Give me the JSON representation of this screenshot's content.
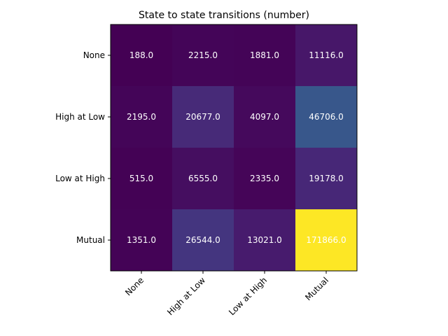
{
  "chart_data": {
    "type": "heatmap",
    "title": "State to state transitions (number)",
    "xlabel": "",
    "ylabel": "",
    "x_categories": [
      "None",
      "High at Low",
      "Low at High",
      "Mutual"
    ],
    "y_categories": [
      "None",
      "High at Low",
      "Low at High",
      "Mutual"
    ],
    "values": [
      [
        188.0,
        2215.0,
        1881.0,
        11116.0
      ],
      [
        2195.0,
        20677.0,
        4097.0,
        46706.0
      ],
      [
        515.0,
        6555.0,
        2335.0,
        19178.0
      ],
      [
        1351.0,
        26544.0,
        13021.0,
        171866.0
      ]
    ],
    "value_labels": [
      [
        "188.0",
        "2215.0",
        "1881.0",
        "11116.0"
      ],
      [
        "2195.0",
        "20677.0",
        "4097.0",
        "46706.0"
      ],
      [
        "515.0",
        "6555.0",
        "2335.0",
        "19178.0"
      ],
      [
        "1351.0",
        "26544.0",
        "13021.0",
        "171866.0"
      ]
    ],
    "colormap": "viridis",
    "grid": false,
    "legend": "none"
  }
}
